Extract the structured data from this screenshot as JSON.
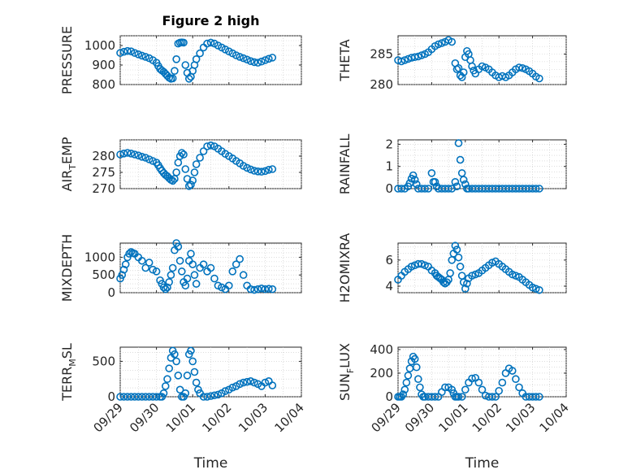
{
  "figure": {
    "title": "Figure 2 high",
    "marker_color": "#0072BD",
    "background": "#ffffff"
  },
  "x_ticks": [
    "09/29",
    "09/30",
    "10/01",
    "10/02",
    "10/03",
    "10/04"
  ],
  "x_axis_label": "Time",
  "chart_data": [
    {
      "type": "scatter",
      "panel": "top-left",
      "title": "Figure 2 high",
      "ylabel": "PRESSURE",
      "ylim": [
        800,
        1050
      ],
      "yticks": [
        800,
        900,
        1000
      ],
      "xlim": [
        0,
        5
      ],
      "grid": true,
      "x": [
        0,
        0.1,
        0.2,
        0.3,
        0.4,
        0.5,
        0.6,
        0.7,
        0.8,
        0.9,
        1.0,
        1.05,
        1.1,
        1.15,
        1.2,
        1.25,
        1.3,
        1.35,
        1.4,
        1.45,
        1.5,
        1.55,
        1.6,
        1.65,
        1.7,
        1.75,
        1.8,
        1.85,
        1.9,
        1.95,
        2.0,
        2.05,
        2.1,
        2.2,
        2.3,
        2.4,
        2.5,
        2.6,
        2.7,
        2.8,
        2.9,
        3.0,
        3.1,
        3.2,
        3.3,
        3.4,
        3.5,
        3.6,
        3.7,
        3.8,
        3.9,
        4.0,
        4.1,
        4.2
      ],
      "y": [
        962,
        968,
        972,
        970,
        962,
        955,
        948,
        942,
        935,
        925,
        912,
        895,
        880,
        872,
        865,
        855,
        845,
        835,
        830,
        832,
        870,
        930,
        1010,
        1015,
        1016,
        1015,
        900,
        860,
        830,
        840,
        870,
        900,
        930,
        960,
        990,
        1010,
        1015,
        1010,
        1000,
        990,
        980,
        970,
        960,
        950,
        942,
        935,
        928,
        920,
        915,
        912,
        918,
        925,
        932,
        938
      ]
    },
    {
      "type": "scatter",
      "panel": "top-right",
      "ylabel": "THETA",
      "ylim": [
        280,
        288
      ],
      "yticks": [
        280,
        285
      ],
      "xlim": [
        0,
        5
      ],
      "grid": true,
      "x": [
        0,
        0.1,
        0.2,
        0.3,
        0.4,
        0.5,
        0.6,
        0.7,
        0.8,
        0.9,
        1.0,
        1.1,
        1.2,
        1.3,
        1.4,
        1.5,
        1.6,
        1.7,
        1.75,
        1.8,
        1.85,
        1.9,
        1.95,
        2.0,
        2.05,
        2.1,
        2.15,
        2.2,
        2.25,
        2.3,
        2.4,
        2.5,
        2.6,
        2.7,
        2.8,
        2.9,
        3.0,
        3.1,
        3.2,
        3.3,
        3.4,
        3.5,
        3.6,
        3.7,
        3.8,
        3.9,
        4.0,
        4.1,
        4.2
      ],
      "y": [
        284,
        283.8,
        284,
        284.2,
        284.4,
        284.5,
        284.6,
        284.8,
        285,
        285.3,
        285.8,
        286.3,
        286.6,
        286.8,
        287,
        287.3,
        287,
        283.5,
        282.5,
        282.7,
        281.5,
        281.2,
        282,
        284.5,
        285.5,
        285,
        284,
        283,
        282.3,
        281.8,
        282.5,
        283,
        282.8,
        282.5,
        282,
        281.5,
        281.2,
        281.4,
        281.2,
        281.5,
        282,
        282.5,
        282.8,
        282.7,
        282.5,
        282.2,
        281.8,
        281.3,
        281
      ]
    },
    {
      "type": "scatter",
      "panel": "row2-left",
      "ylabel": "AIR_TEMP",
      "ylim": [
        270,
        285
      ],
      "yticks": [
        270,
        275,
        280
      ],
      "xlim": [
        0,
        5
      ],
      "grid": true,
      "x": [
        0,
        0.1,
        0.2,
        0.3,
        0.4,
        0.5,
        0.6,
        0.7,
        0.8,
        0.9,
        1.0,
        1.05,
        1.1,
        1.15,
        1.2,
        1.25,
        1.3,
        1.35,
        1.4,
        1.45,
        1.5,
        1.55,
        1.6,
        1.65,
        1.7,
        1.75,
        1.8,
        1.85,
        1.9,
        1.95,
        2.0,
        2.05,
        2.1,
        2.2,
        2.3,
        2.4,
        2.5,
        2.6,
        2.7,
        2.8,
        2.9,
        3.0,
        3.1,
        3.2,
        3.3,
        3.4,
        3.5,
        3.6,
        3.7,
        3.8,
        3.9,
        4.0,
        4.1,
        4.2
      ],
      "y": [
        280.5,
        280.8,
        281,
        280.8,
        280.5,
        280.2,
        279.8,
        279.5,
        279,
        278.5,
        278,
        277.2,
        276.3,
        275.5,
        274.8,
        274.2,
        273.8,
        273.2,
        272.7,
        272.4,
        273,
        275,
        278,
        280,
        281,
        280.5,
        276,
        273,
        270.8,
        271.2,
        272.5,
        275,
        277.5,
        279.5,
        281.5,
        283,
        283.3,
        283,
        282.3,
        281.5,
        280.7,
        280,
        279.3,
        278.5,
        277.8,
        277,
        276.4,
        275.9,
        275.5,
        275.3,
        275.2,
        275.4,
        275.8,
        276
      ]
    },
    {
      "type": "scatter",
      "panel": "row2-right",
      "ylabel": "RAINFALL",
      "ylim": [
        0,
        2.2
      ],
      "yticks": [
        0,
        1,
        2
      ],
      "xlim": [
        0,
        5
      ],
      "grid": true,
      "x": [
        0,
        0.1,
        0.2,
        0.3,
        0.35,
        0.4,
        0.45,
        0.5,
        0.55,
        0.6,
        0.7,
        0.8,
        0.9,
        1.0,
        1.05,
        1.1,
        1.15,
        1.2,
        1.3,
        1.4,
        1.5,
        1.6,
        1.7,
        1.75,
        1.8,
        1.85,
        1.9,
        1.95,
        2.0,
        2.05,
        2.1,
        2.2,
        2.3,
        2.4,
        2.5,
        2.6,
        2.7,
        2.8,
        2.9,
        3.0,
        3.1,
        3.2,
        3.3,
        3.4,
        3.5,
        3.6,
        3.7,
        3.8,
        3.9,
        4.0,
        4.1,
        4.2
      ],
      "y": [
        0,
        0,
        0,
        0.1,
        0.25,
        0.45,
        0.6,
        0.4,
        0.2,
        0,
        0,
        0,
        0,
        0.7,
        0.3,
        0.3,
        0.1,
        0,
        0,
        0,
        0,
        0,
        0.3,
        0.1,
        2.05,
        1.3,
        0.7,
        0.4,
        0.2,
        0,
        0,
        0,
        0,
        0,
        0,
        0,
        0,
        0,
        0,
        0,
        0,
        0,
        0,
        0,
        0,
        0,
        0,
        0,
        0,
        0,
        0,
        0
      ]
    },
    {
      "type": "scatter",
      "panel": "row3-left",
      "ylabel": "MIXDEPTH",
      "ylim": [
        0,
        1400
      ],
      "yticks": [
        0,
        500,
        1000
      ],
      "xlim": [
        0,
        5
      ],
      "grid": true,
      "x": [
        0,
        0.05,
        0.1,
        0.15,
        0.2,
        0.25,
        0.3,
        0.35,
        0.4,
        0.5,
        0.6,
        0.7,
        0.8,
        0.9,
        1.0,
        1.1,
        1.15,
        1.2,
        1.25,
        1.3,
        1.35,
        1.4,
        1.45,
        1.5,
        1.55,
        1.6,
        1.65,
        1.7,
        1.75,
        1.8,
        1.85,
        1.9,
        1.95,
        2.0,
        2.05,
        2.1,
        2.2,
        2.3,
        2.4,
        2.5,
        2.6,
        2.7,
        2.8,
        2.9,
        3.0,
        3.1,
        3.2,
        3.3,
        3.4,
        3.5,
        3.6,
        3.7,
        3.8,
        3.9,
        4.0,
        4.1,
        4.2
      ],
      "y": [
        400,
        500,
        650,
        800,
        1000,
        1100,
        1150,
        1120,
        1100,
        1000,
        900,
        700,
        850,
        650,
        600,
        350,
        250,
        150,
        100,
        150,
        300,
        500,
        700,
        1200,
        1400,
        1300,
        900,
        600,
        300,
        200,
        400,
        900,
        1100,
        800,
        500,
        250,
        700,
        800,
        600,
        700,
        400,
        200,
        150,
        100,
        200,
        600,
        800,
        950,
        500,
        200,
        100,
        80,
        100,
        120,
        100,
        110,
        100
      ]
    },
    {
      "type": "scatter",
      "panel": "row3-right",
      "ylabel": "H2OMIXRA",
      "ylim": [
        3.5,
        7.3
      ],
      "yticks": [
        4,
        6
      ],
      "xlim": [
        0,
        5
      ],
      "grid": true,
      "x": [
        0,
        0.1,
        0.2,
        0.3,
        0.4,
        0.5,
        0.6,
        0.7,
        0.8,
        0.9,
        1.0,
        1.1,
        1.15,
        1.2,
        1.25,
        1.3,
        1.35,
        1.4,
        1.45,
        1.5,
        1.55,
        1.6,
        1.65,
        1.7,
        1.75,
        1.8,
        1.85,
        1.9,
        1.95,
        2.0,
        2.05,
        2.1,
        2.2,
        2.3,
        2.4,
        2.5,
        2.6,
        2.7,
        2.8,
        2.9,
        3.0,
        3.1,
        3.2,
        3.3,
        3.4,
        3.5,
        3.6,
        3.7,
        3.8,
        3.9,
        4.0,
        4.1,
        4.2
      ],
      "y": [
        4.5,
        4.8,
        5.1,
        5.3,
        5.5,
        5.6,
        5.7,
        5.7,
        5.6,
        5.5,
        5.2,
        5.0,
        4.8,
        4.7,
        4.6,
        4.5,
        4.3,
        4.2,
        4.3,
        4.5,
        5.0,
        6.0,
        6.5,
        7.1,
        6.8,
        6.2,
        5.5,
        4.8,
        4.3,
        3.8,
        4.2,
        4.6,
        4.8,
        4.9,
        5.0,
        5.2,
        5.4,
        5.6,
        5.8,
        5.9,
        5.7,
        5.5,
        5.3,
        5.1,
        4.9,
        4.8,
        4.7,
        4.5,
        4.3,
        4.1,
        3.9,
        3.8,
        3.7
      ]
    },
    {
      "type": "scatter",
      "panel": "bottom-left",
      "ylabel": "TERR_MSL",
      "ylim": [
        0,
        700
      ],
      "yticks": [
        0,
        500
      ],
      "xlim": [
        0,
        5
      ],
      "grid": true,
      "x": [
        0,
        0.1,
        0.2,
        0.3,
        0.4,
        0.5,
        0.6,
        0.7,
        0.8,
        0.9,
        1.0,
        1.1,
        1.15,
        1.2,
        1.25,
        1.3,
        1.35,
        1.4,
        1.45,
        1.5,
        1.55,
        1.6,
        1.65,
        1.7,
        1.75,
        1.8,
        1.85,
        1.9,
        1.95,
        2.0,
        2.05,
        2.1,
        2.15,
        2.2,
        2.3,
        2.4,
        2.5,
        2.6,
        2.7,
        2.8,
        2.9,
        3.0,
        3.1,
        3.2,
        3.3,
        3.4,
        3.5,
        3.6,
        3.7,
        3.8,
        3.9,
        4.0,
        4.1,
        4.2
      ],
      "y": [
        0,
        0,
        0,
        0,
        0,
        0,
        0,
        0,
        0,
        0,
        0,
        0,
        0,
        50,
        150,
        250,
        400,
        550,
        650,
        600,
        500,
        300,
        100,
        0,
        0,
        50,
        300,
        600,
        650,
        500,
        350,
        200,
        100,
        50,
        0,
        0,
        10,
        20,
        30,
        50,
        80,
        100,
        130,
        150,
        180,
        200,
        210,
        220,
        200,
        180,
        150,
        200,
        220,
        160
      ]
    },
    {
      "type": "scatter",
      "panel": "bottom-right",
      "ylabel": "SUN_FLUX",
      "ylim": [
        0,
        420
      ],
      "yticks": [
        0,
        200,
        400
      ],
      "xlim": [
        0,
        5
      ],
      "grid": true,
      "x": [
        0,
        0.05,
        0.1,
        0.15,
        0.2,
        0.25,
        0.3,
        0.35,
        0.4,
        0.45,
        0.5,
        0.55,
        0.6,
        0.65,
        0.7,
        0.75,
        0.8,
        0.9,
        1.0,
        1.1,
        1.2,
        1.3,
        1.4,
        1.5,
        1.6,
        1.65,
        1.7,
        1.75,
        1.8,
        1.9,
        2.0,
        2.1,
        2.2,
        2.3,
        2.4,
        2.5,
        2.6,
        2.7,
        2.8,
        2.9,
        3.0,
        3.1,
        3.2,
        3.3,
        3.4,
        3.5,
        3.6,
        3.7,
        3.8,
        3.9,
        4.0,
        4.1,
        4.2
      ],
      "y": [
        0,
        0,
        0,
        20,
        60,
        120,
        180,
        240,
        300,
        340,
        320,
        250,
        150,
        80,
        20,
        0,
        0,
        0,
        0,
        0,
        0,
        40,
        80,
        80,
        60,
        30,
        0,
        0,
        0,
        0,
        60,
        120,
        155,
        160,
        120,
        60,
        10,
        0,
        0,
        0,
        50,
        120,
        200,
        240,
        220,
        150,
        80,
        30,
        0,
        0,
        0,
        0,
        0
      ]
    }
  ]
}
